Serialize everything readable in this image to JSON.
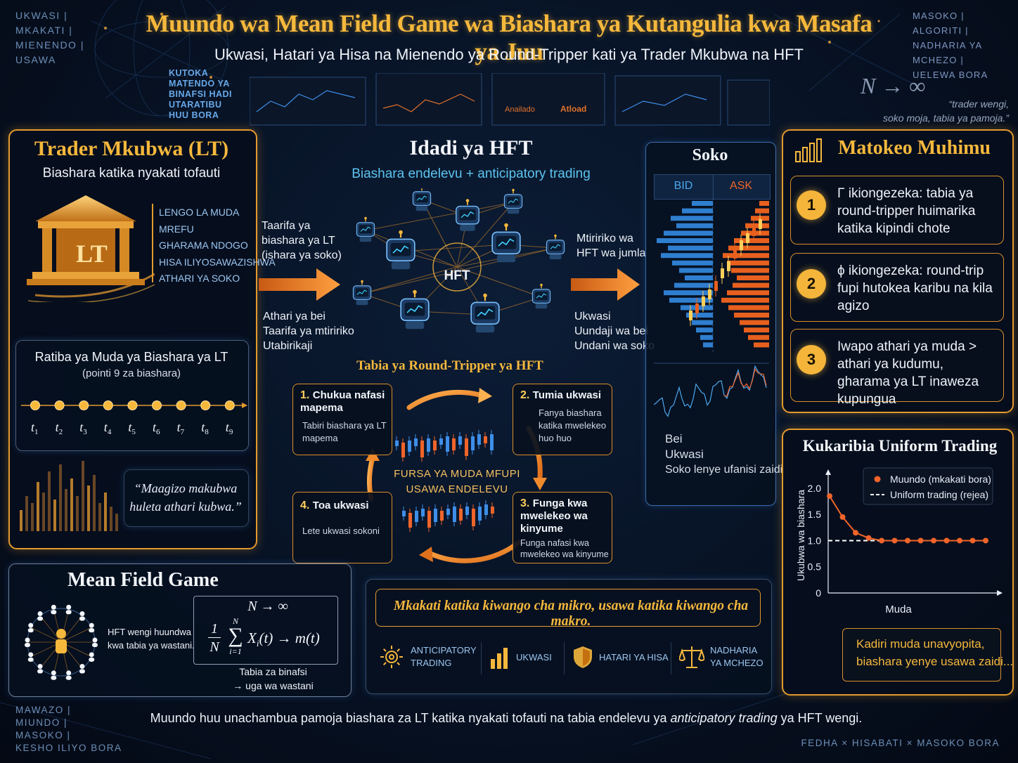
{
  "header": {
    "title": "Muundo wa Mean Field Game wa Biashara ya Kutangulia kwa Masafa ya Juu",
    "subtitle": "Ukwasi, Hatari ya Hisa na Mienendo ya Round-Tripper kati ya Trader Mkubwa na HFT"
  },
  "corners": {
    "top_left": [
      "UKWASI |",
      "MKAKATI |",
      "MIENENDO |",
      "USAWA"
    ],
    "top_left_sub": [
      "KUTOKA",
      "MATENDO YA",
      "BINAFSI HADI",
      "UTARATIBU",
      "HUU BORA"
    ],
    "top_right": [
      "MASOKO |",
      "ALGORITI |",
      "NADHARIA YA MCHEZO |",
      "UELEWA BORA"
    ],
    "top_right_formula": "N → ∞",
    "top_right_quote": [
      "“trader wengi,",
      "soko moja, tabia ya pamoja.”"
    ],
    "bottom_left": [
      "MAWAZO |",
      "MIUNDO |",
      "MASOKO |",
      "KESHO ILIYO BORA"
    ],
    "bottom_right": "FEDHA × HISABATI × MASOKO BORA"
  },
  "screens": {
    "label_a": "Anailado",
    "label_b": "Atload"
  },
  "lt_panel": {
    "title": "Trader Mkubwa (LT)",
    "subtitle": "Biashara katika nyakati tofauti",
    "icon_label": "LT",
    "features": [
      "LENGO LA MUDA",
      "MREFU",
      "GHARAMA NDOGO",
      "HISA ILIYOSAWAZISHWA",
      "ATHARI YA SOKO"
    ],
    "schedule_title": "Ratiba ya Muda ya Biashara ya LT",
    "schedule_sub": "(pointi 9 za biashara)",
    "times": [
      "t1",
      "t2",
      "t3",
      "t4",
      "t5",
      "t6",
      "t7",
      "t8",
      "t9"
    ],
    "time_subs": [
      "1",
      "2",
      "3",
      "4",
      "5",
      "6",
      "7",
      "8",
      "9"
    ],
    "quote": [
      "“Maagizo makubwa",
      "huleta athari kubwa.”"
    ]
  },
  "hft_panel": {
    "title": "Idadi ya HFT",
    "subtitle": "Biashara endelevu + anticipatory trading",
    "center_label": "HFT",
    "left_top": [
      "Taarifa ya",
      "biashara ya LT",
      "(ishara ya soko)"
    ],
    "left_bottom": [
      "Athari ya bei",
      "Taarifa ya mtiririko",
      "Utabirikaji"
    ],
    "right_top": [
      "Mtiririko wa",
      "HFT wa jumla"
    ],
    "right_bottom": [
      "Ukwasi",
      "Uundaji wa bei",
      "Undani wa soko"
    ]
  },
  "cycle": {
    "title": "Tabia ya Round-Tripper ya HFT",
    "center": [
      "FURSA YA MUDA MFUPI",
      "USAWA ENDELEVU"
    ],
    "steps": [
      {
        "num": "1.",
        "title": "Chukua nafasi mapema",
        "desc": "Tabiri biashara ya LT mapema"
      },
      {
        "num": "2.",
        "title": "Tumia ukwasi",
        "desc": "Fanya biashara katika mwelekeo huo huo"
      },
      {
        "num": "3.",
        "title": "Funga kwa mwelekeo wa kinyume",
        "desc": "Funga nafasi kwa mwelekeo wa kinyume"
      },
      {
        "num": "4.",
        "title": "Toa ukwasi",
        "desc": "Lete ukwasi sokoni"
      }
    ]
  },
  "market": {
    "title": "Soko",
    "bid": "BID",
    "ask": "ASK",
    "legend": [
      "Bei",
      "Ukwasi",
      "Soko lenye ufanisi zaidi"
    ]
  },
  "results": {
    "title": "Matokeo Muhimu",
    "items": [
      {
        "num": "1",
        "text": "Γ ikiongezeka: tabia ya round-tripper huimarika katika kipindi chote"
      },
      {
        "num": "2",
        "text": "ϕ ikiongezeka: round-trip fupi hutokea karibu na kila agizo"
      },
      {
        "num": "3",
        "text": "Iwapo athari ya muda > athari ya kudumu, gharama ya LT inaweza kupungua"
      }
    ]
  },
  "uniform": {
    "title": "Kukaribia Uniform Trading",
    "note": [
      "Kadiri muda unavyopita,",
      "biashara yenye usawa zaidi..."
    ]
  },
  "chart_data": {
    "type": "line",
    "title": "Kukaribia Uniform Trading",
    "xlabel": "Muda",
    "ylabel": "Ukubwa wa biashara",
    "ylim": [
      0,
      2.2
    ],
    "yticks": [
      "0",
      "0.5",
      "1.0",
      "1.5",
      "2.0"
    ],
    "ytick_values": [
      0,
      0.5,
      1.0,
      1.5,
      2.0
    ],
    "series": [
      {
        "name": "Muundo (mkakati bora)",
        "color": "#f0642a",
        "x": [
          0,
          1,
          2,
          3,
          4,
          5,
          6,
          7,
          8,
          9,
          10,
          11,
          12
        ],
        "y": [
          1.85,
          1.45,
          1.15,
          1.05,
          1.0,
          1.0,
          1.0,
          1.0,
          1.0,
          1.0,
          1.0,
          1.0,
          1.0
        ]
      },
      {
        "name": "Uniform trading (rejea)",
        "color": "#ffffff",
        "style": "dashed",
        "x": [
          0,
          12
        ],
        "y": [
          1.0,
          1.0
        ]
      }
    ]
  },
  "mfg": {
    "title": "Mean Field Game",
    "desc": [
      "HFT wengi huundwa",
      "kwa tabia ya wastani."
    ],
    "formula_top": "N → ∞",
    "formula_frac_num": "1",
    "formula_frac_den": "N",
    "formula_sum_top": "N",
    "formula_sum_bot": "i=1",
    "formula_body": "X",
    "formula_sub": "i",
    "formula_rest": "(t) → m(t)",
    "caption": [
      "Tabia za binafsi",
      "→ uga wa wastani"
    ]
  },
  "micro": {
    "quote": "Mkakati katika kiwango cha mikro, usawa katika kiwango cha makro.",
    "icons": [
      {
        "icon": "gear-icon",
        "label": [
          "ANTICIPATORY",
          "TRADING"
        ]
      },
      {
        "icon": "bars-icon",
        "label": [
          "UKWASI"
        ]
      },
      {
        "icon": "shield-icon",
        "label": [
          "HATARI YA HISA"
        ]
      },
      {
        "icon": "scales-icon",
        "label": [
          "NADHARIA",
          "YA MCHEZO"
        ]
      }
    ]
  },
  "footer": {
    "pre": "Muundo huu unachambua pamoja biashara za LT katika nyakati tofauti na tabia endelevu ya ",
    "em": "anticipatory trading",
    "post": " ya HFT wengi."
  }
}
